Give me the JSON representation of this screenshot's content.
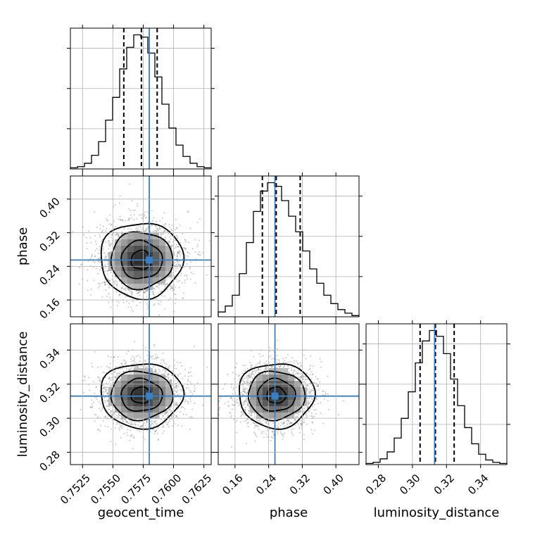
{
  "chart_data": {
    "type": "corner",
    "parameters": [
      "geocent_time",
      "phase",
      "luminosity_distance"
    ],
    "truth": {
      "geocent_time": 0.758,
      "phase": 0.255,
      "luminosity_distance": 0.313
    },
    "axes": {
      "geocent_time": {
        "range": [
          0.7515,
          0.7631
        ],
        "ticks": [
          0.7525,
          0.755,
          0.7575,
          0.76,
          0.7625
        ],
        "tick_labels": [
          "0.7525",
          "0.7550",
          "0.7575",
          "0.7600",
          "0.7625"
        ]
      },
      "phase": {
        "range": [
          0.12,
          0.455
        ],
        "ticks": [
          0.16,
          0.24,
          0.32,
          0.4
        ],
        "tick_labels": [
          "0.16",
          "0.24",
          "0.32",
          "0.40"
        ]
      },
      "luminosity_distance": {
        "range": [
          0.2728,
          0.3554
        ],
        "ticks": [
          0.28,
          0.3,
          0.32,
          0.34
        ],
        "tick_labels": [
          "0.28",
          "0.30",
          "0.32",
          "0.34"
        ]
      }
    },
    "marginals": [
      {
        "parameter": "geocent_time",
        "bin_edges": [
          0.7515,
          0.75208,
          0.75266,
          0.75324,
          0.75382,
          0.7544,
          0.75498,
          0.75556,
          0.75614,
          0.75672,
          0.7573,
          0.75788,
          0.75846,
          0.75904,
          0.75962,
          0.7602,
          0.76078,
          0.76136,
          0.76194,
          0.76252,
          0.7631
        ],
        "counts": [
          1,
          2,
          5,
          12,
          24,
          43,
          63,
          88,
          107,
          118,
          116,
          102,
          81,
          57,
          36,
          21,
          11,
          5,
          2,
          1
        ],
        "quantiles": [
          0.7559,
          0.75735,
          0.75865
        ]
      },
      {
        "parameter": "phase",
        "bin_edges": [
          0.12,
          0.13675,
          0.1535,
          0.17025,
          0.187,
          0.20375,
          0.2205,
          0.23725,
          0.254,
          0.27075,
          0.2875,
          0.30425,
          0.321,
          0.33775,
          0.3545,
          0.37125,
          0.388,
          0.40475,
          0.4215,
          0.43825,
          0.455
        ],
        "counts": [
          4,
          9,
          18,
          36,
          62,
          88,
          105,
          112,
          109,
          97,
          84,
          71,
          55,
          40,
          28,
          18,
          11,
          6,
          3,
          1
        ],
        "quantiles": [
          0.225,
          0.258,
          0.315
        ]
      },
      {
        "parameter": "luminosity_distance",
        "bin_edges": [
          0.2728,
          0.27693,
          0.28106,
          0.28519,
          0.28932,
          0.29345,
          0.29758,
          0.30171,
          0.30584,
          0.30997,
          0.3141,
          0.31823,
          0.32236,
          0.32649,
          0.33062,
          0.33475,
          0.33888,
          0.34301,
          0.34714,
          0.35127,
          0.3554
        ],
        "counts": [
          1,
          2,
          5,
          11,
          23,
          40,
          63,
          88,
          107,
          116,
          111,
          96,
          74,
          51,
          32,
          18,
          9,
          4,
          2,
          1
        ],
        "quantiles": [
          0.3045,
          0.3135,
          0.3245
        ]
      }
    ],
    "joint": [
      {
        "x": "geocent_time",
        "y": "phase",
        "x_center": 0.75735,
        "y_center": 0.255,
        "x_sigma": 0.0017,
        "y_sigma": 0.045
      },
      {
        "x": "geocent_time",
        "y": "luminosity_distance",
        "x_center": 0.75735,
        "y_center": 0.3135,
        "x_sigma": 0.0017,
        "y_sigma": 0.0095
      },
      {
        "x": "phase",
        "y": "luminosity_distance",
        "x_center": 0.258,
        "y_center": 0.3135,
        "x_sigma": 0.045,
        "y_sigma": 0.0095
      }
    ],
    "contour_levels_sigma": [
      0.5,
      1.0,
      1.5,
      2.0
    ],
    "xlabels": [
      "geocent_time",
      "phase",
      "luminosity_distance"
    ],
    "ylabels": [
      "phase",
      "luminosity_distance"
    ],
    "grid": true,
    "colors": {
      "hist": "#000000",
      "truth": "#3a7fc0",
      "grid": "#b0b0b0",
      "contour": "#000000",
      "scatter": "#7a7a7a"
    }
  }
}
